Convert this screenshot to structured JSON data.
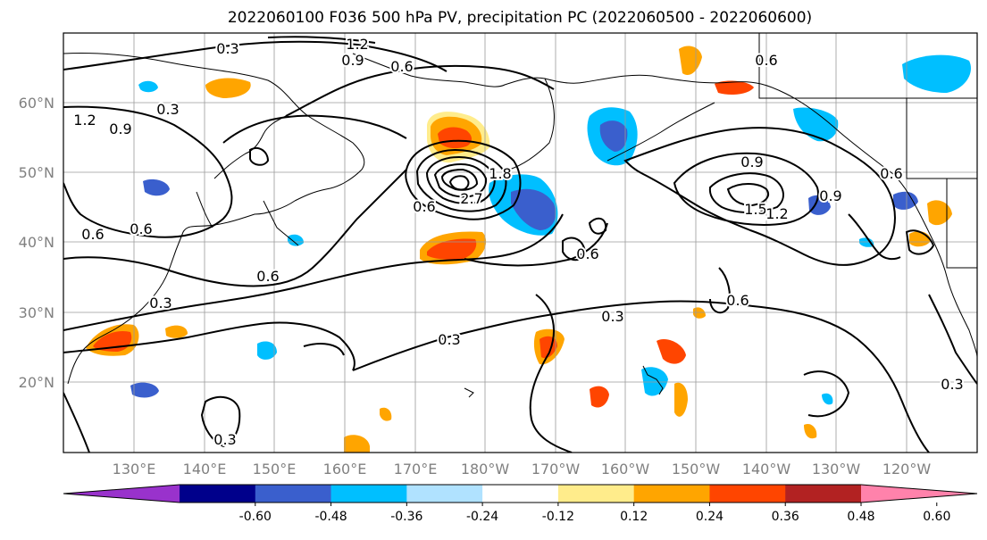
{
  "title": "2022060100 F036 500 hPa PV, precipitation PC (2022060500 - 2022060600)",
  "lat_labels": [
    "60°N",
    "50°N",
    "40°N",
    "30°N",
    "20°N"
  ],
  "lon_labels": [
    "130°E",
    "140°E",
    "150°E",
    "160°E",
    "170°E",
    "180°W",
    "170°W",
    "160°W",
    "150°W",
    "140°W",
    "130°W",
    "120°W"
  ],
  "contour_labels": [
    "0.3",
    "1.2",
    "0.9",
    "0.6",
    "0.3",
    "1.2",
    "0.9",
    "0.6",
    "0.6",
    "0.3",
    "0.6",
    "1.8",
    "2.7",
    "0.9",
    "0.6",
    "0.9",
    "1.5",
    "1.2",
    "0.6",
    "0.6",
    "0.3",
    "0.6",
    "0.3",
    "0.3",
    "0.6",
    "0.3"
  ],
  "colorbar": {
    "colors": [
      "#9932cc",
      "#00008b",
      "#3a5fcd",
      "#00bfff",
      "#b0e2ff",
      "#ffffff",
      "#ffec8b",
      "#ffa500",
      "#ff4500",
      "#b22222",
      "#ff82ab"
    ],
    "ticks": [
      "-0.60",
      "-0.48",
      "-0.36",
      "-0.24",
      "-0.12",
      "0.12",
      "0.24",
      "0.36",
      "0.48",
      "0.60"
    ]
  },
  "colors": {
    "land_line": "#000000",
    "grid": "#9a9a9a",
    "axis_label": "#808080"
  }
}
